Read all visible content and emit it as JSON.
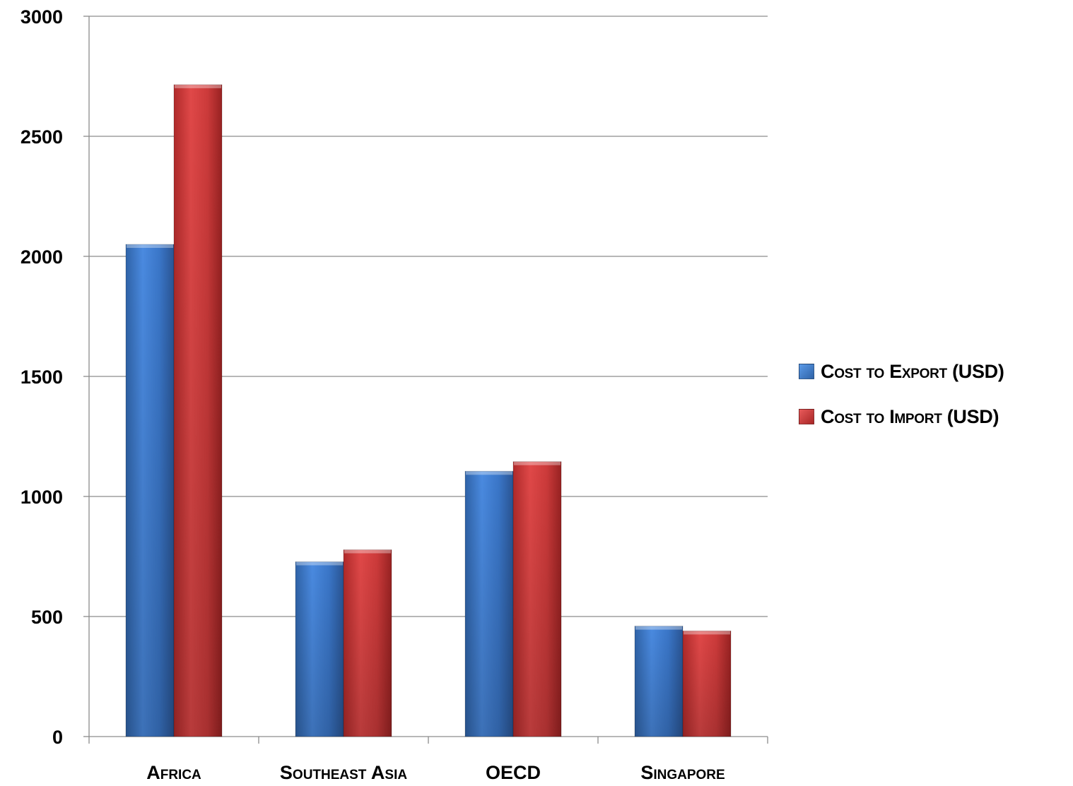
{
  "chart_data": {
    "type": "bar",
    "title": "",
    "xlabel": "",
    "ylabel": "",
    "categories": [
      "Africa",
      "Southeast Asia",
      "OECD",
      "Singapore"
    ],
    "series": [
      {
        "name": "Cost to Export (USD)",
        "values": [
          2050,
          728,
          1105,
          460
        ],
        "color": "#3f7fd1"
      },
      {
        "name": "Cost to Import (USD)",
        "values": [
          2715,
          778,
          1145,
          440
        ],
        "color": "#d63c3c"
      }
    ],
    "ylim": [
      0,
      3000
    ],
    "yticks": [
      "0",
      "500",
      "1000",
      "1500",
      "2000",
      "2500",
      "3000"
    ],
    "grid": true,
    "legend_position": "right"
  }
}
